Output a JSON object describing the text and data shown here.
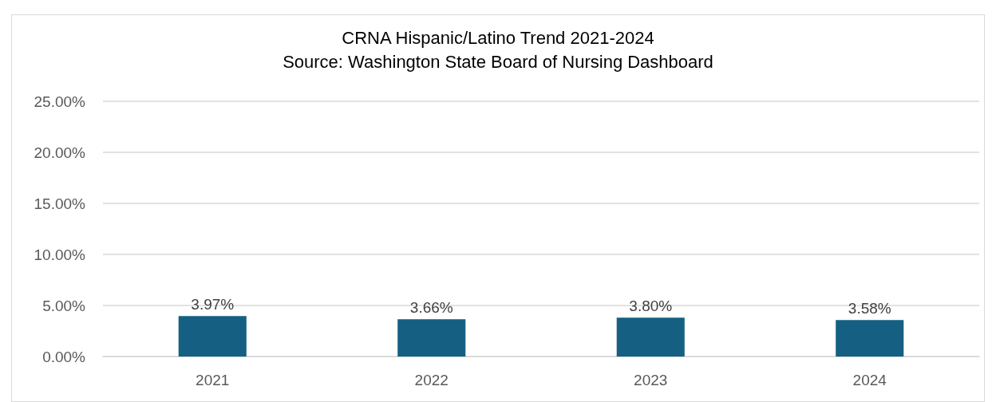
{
  "chart_data": {
    "type": "bar",
    "title": "CRNA Hispanic/Latino Trend 2021-2024",
    "subtitle": "Source: Washington State Board of Nursing Dashboard",
    "categories": [
      "2021",
      "2022",
      "2023",
      "2024"
    ],
    "values": [
      3.97,
      3.66,
      3.8,
      3.58
    ],
    "value_labels": [
      "3.97%",
      "3.66%",
      "3.80%",
      "3.58%"
    ],
    "color": "#156082",
    "ylim": [
      0,
      25
    ],
    "yticks": [
      {
        "value": 0,
        "label": "0.00%"
      },
      {
        "value": 5,
        "label": "5.00%"
      },
      {
        "value": 10,
        "label": "10.00%"
      },
      {
        "value": 15,
        "label": "15.00%"
      },
      {
        "value": 20,
        "label": "20.00%"
      },
      {
        "value": 25,
        "label": "25.00%"
      }
    ],
    "grid": "y"
  }
}
